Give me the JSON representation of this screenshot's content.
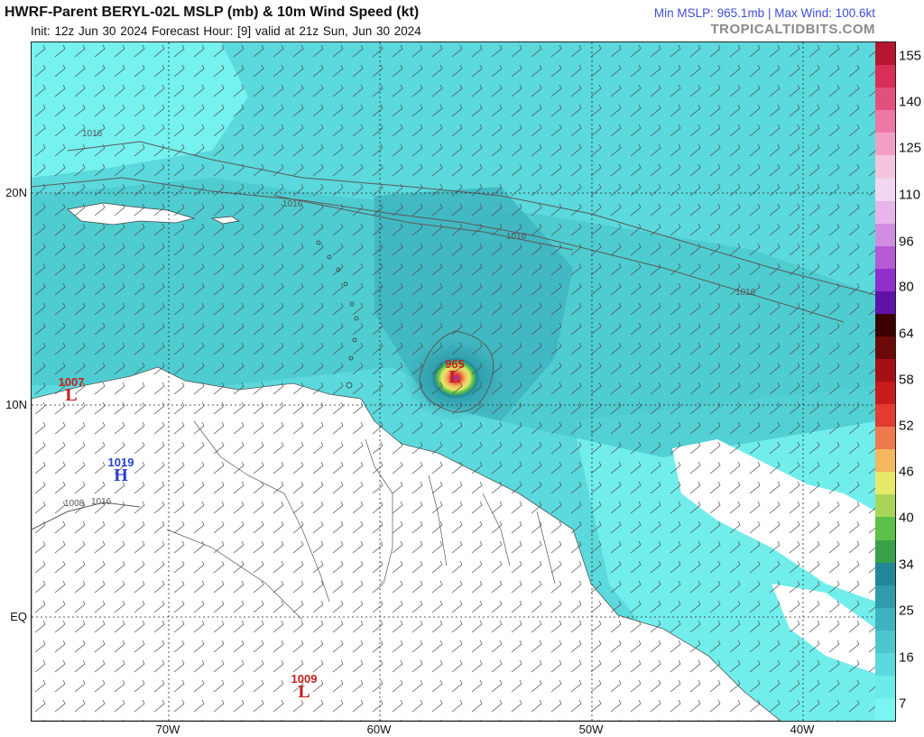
{
  "header": {
    "title": "HWRF-Parent BERYL-02L MSLP (mb) & 10m Wind Speed (kt)",
    "subtitle": "Init: 12z Jun 30 2024   Forecast Hour: [9]   valid at 21z Sun, Jun 30 2024",
    "stats": "Min MSLP: 965.1mb | Max Wind: 100.6kt",
    "brand": "TROPICALTIDBITS.COM"
  },
  "axes": {
    "lat_labels": [
      "20N",
      "10N",
      "EQ"
    ],
    "lon_labels": [
      "70W",
      "60W",
      "50W",
      "40W"
    ]
  },
  "colorbar": {
    "labels": [
      "155",
      "140",
      "125",
      "110",
      "96",
      "80",
      "64",
      "58",
      "52",
      "46",
      "40",
      "34",
      "25",
      "16",
      "7"
    ],
    "colors": [
      "#7af5f2",
      "#6aece9",
      "#5bd9dc",
      "#4cc8cd",
      "#3eb3be",
      "#2f9bab",
      "#228797",
      "#37a04a",
      "#5cc04a",
      "#a8d65a",
      "#e6e86a",
      "#f3b85e",
      "#ee7a4e",
      "#e33b30",
      "#c61c1c",
      "#a50f16",
      "#6a0a0a",
      "#3a0000",
      "#5e12a8",
      "#8f2fcc",
      "#b65ad6",
      "#d08de0",
      "#e6b5ea",
      "#f2d6f2",
      "#f4c6de",
      "#f19fc4",
      "#ec78a6",
      "#e4507e",
      "#d82e57",
      "#b8162f"
    ]
  },
  "systems": [
    {
      "value": "1007",
      "letter": "L",
      "type": "low"
    },
    {
      "value": "1019",
      "letter": "H",
      "type": "high"
    },
    {
      "value": "965",
      "letter": "L",
      "type": "storm"
    },
    {
      "value": "1009",
      "letter": "L",
      "type": "low"
    }
  ],
  "isobar_labels": [
    "1016",
    "1016",
    "1016",
    "1016",
    "1016",
    "1008"
  ],
  "colors": {
    "ocean_light": "#7af5f2",
    "ocean_mid": "#4cc8cd",
    "ocean_dark": "#2f9bab",
    "land_calm": "#ffffff",
    "low_marker": "#c62020",
    "high_marker": "#2a3fd6"
  }
}
